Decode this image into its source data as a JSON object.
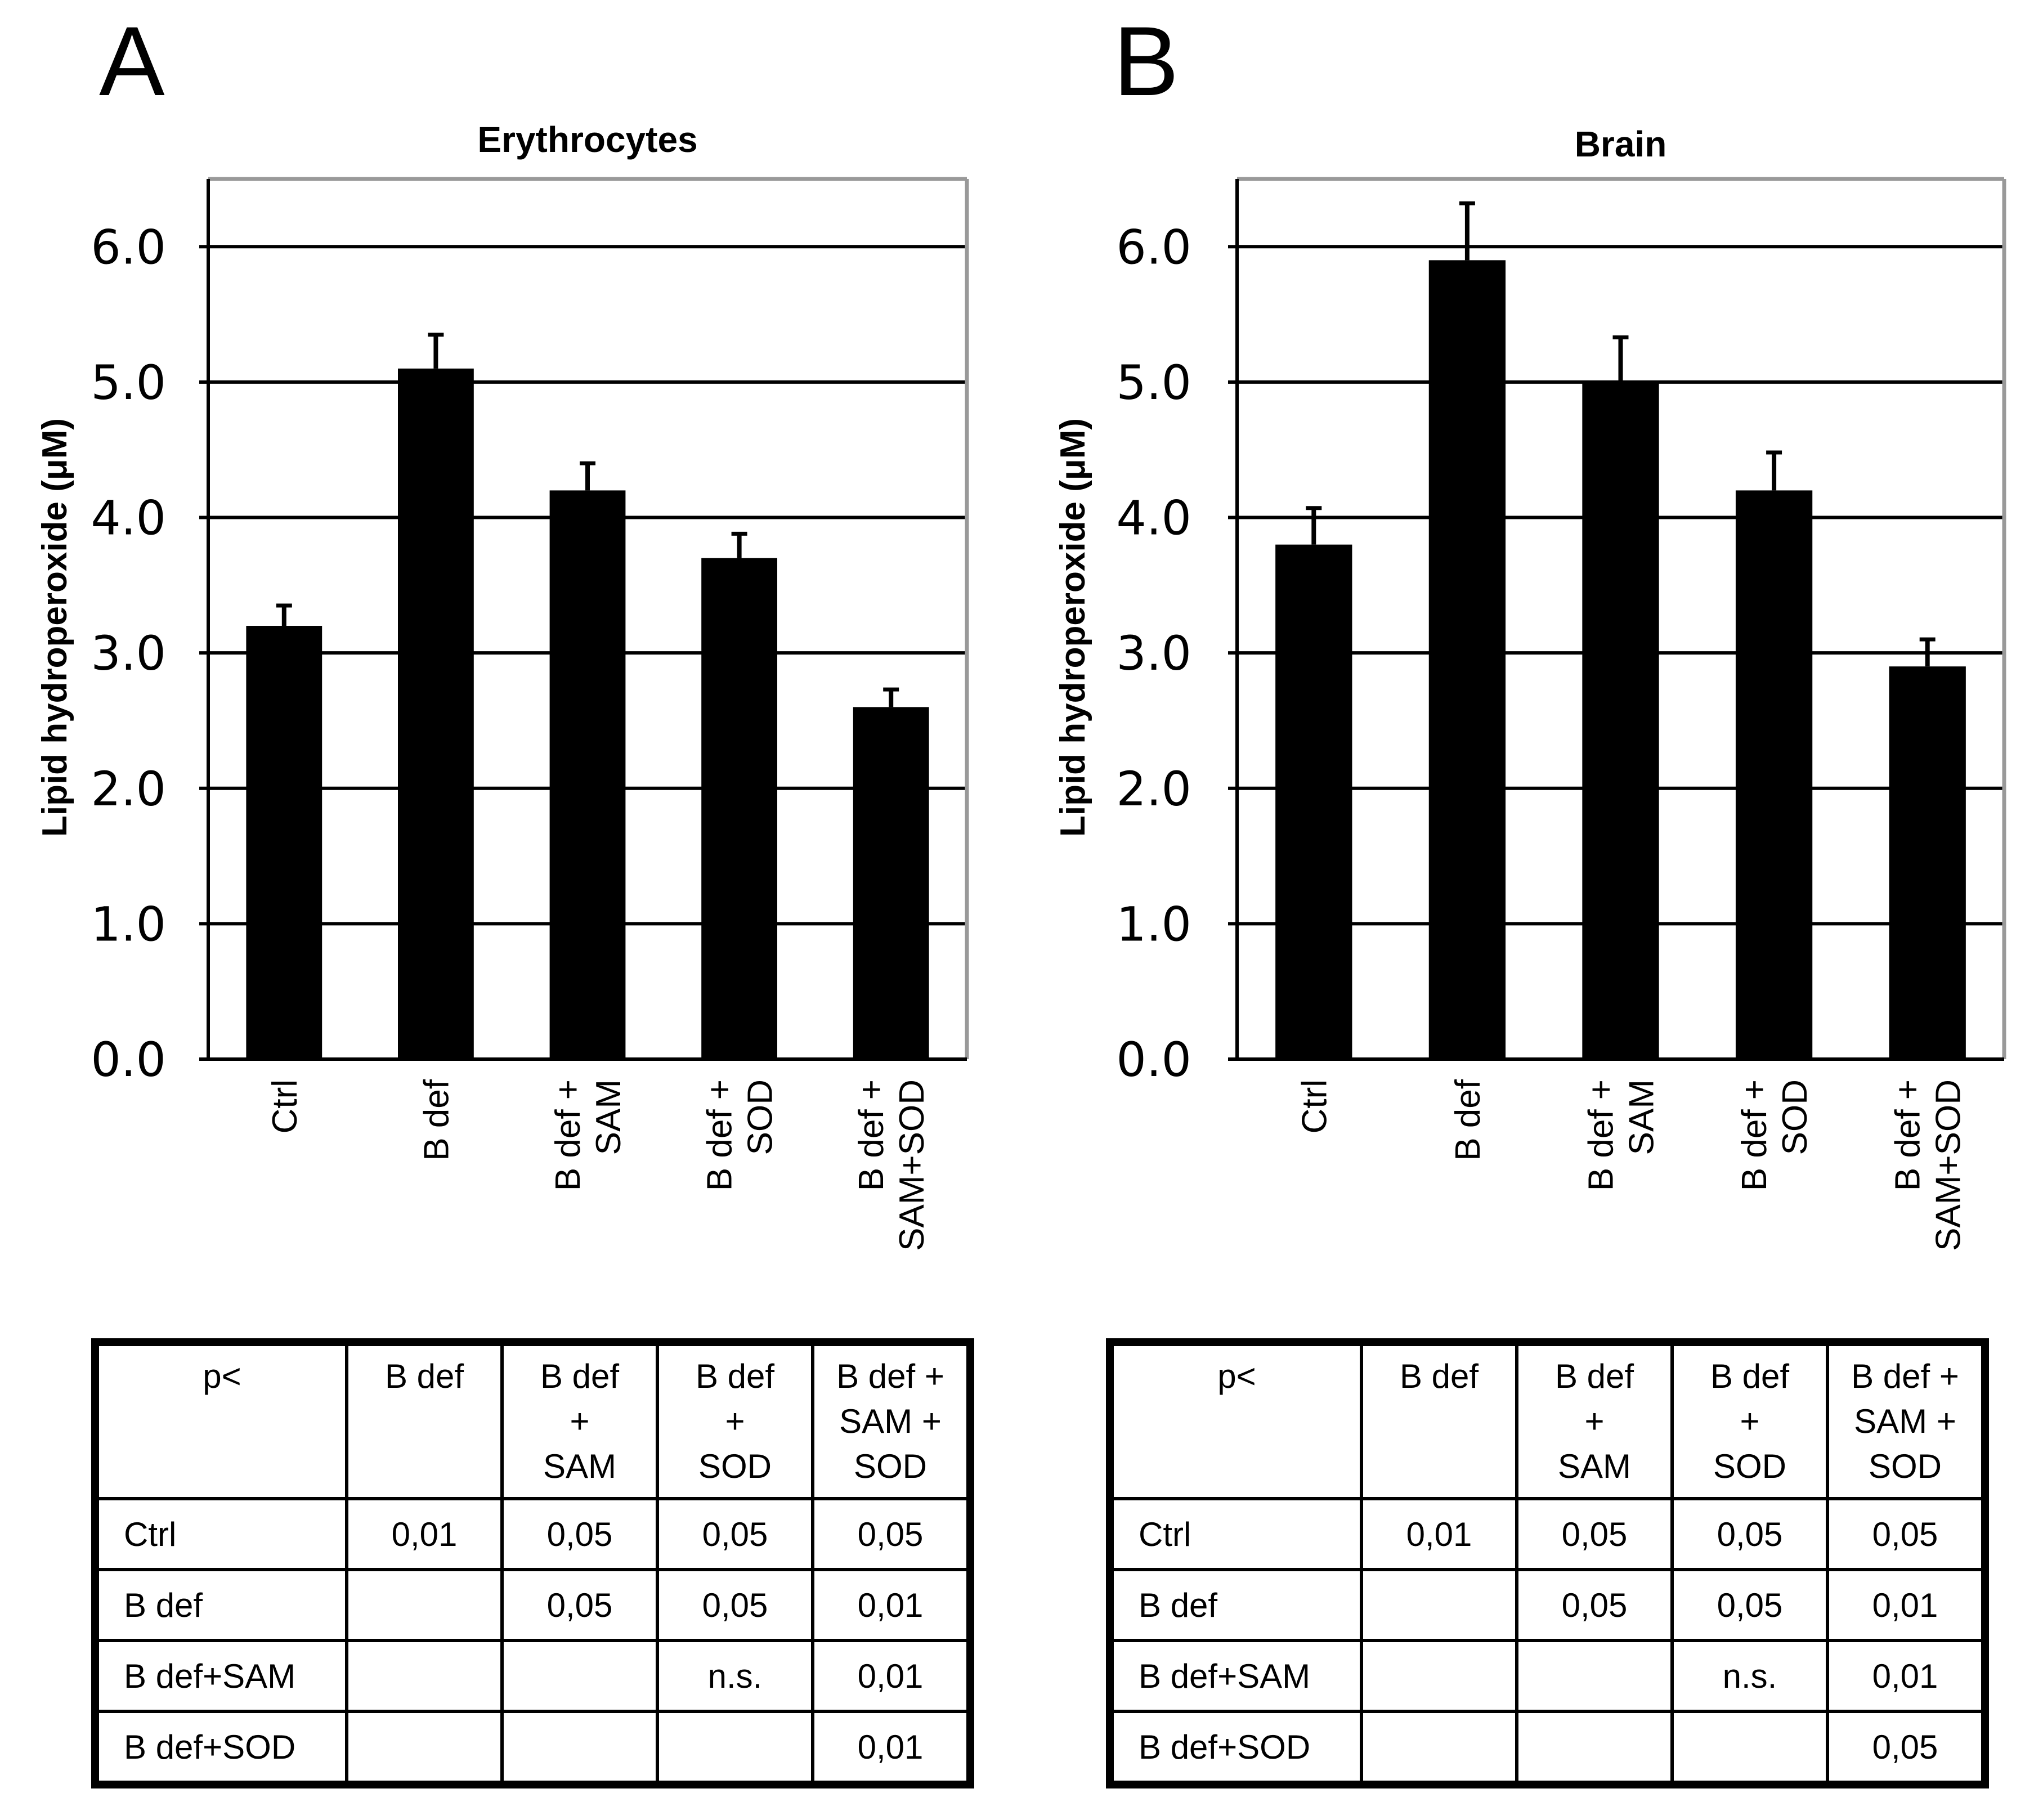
{
  "panels": [
    {
      "letter": "A",
      "chart_data": {
        "type": "bar",
        "title": "Erythrocytes",
        "xlabel": "",
        "ylabel": "Lipid hydroperoxide (μM)",
        "ylim": [
          0,
          6.5
        ],
        "yticks": [
          "0.0",
          "1.0",
          "2.0",
          "3.0",
          "4.0",
          "5.0",
          "6.0"
        ],
        "grid": true,
        "categories": [
          [
            "Ctrl"
          ],
          [
            "B def"
          ],
          [
            "B def +",
            "SAM"
          ],
          [
            "B def +",
            "SOD"
          ],
          [
            "B def +",
            "SAM+SOD"
          ]
        ],
        "values": [
          3.2,
          5.1,
          4.2,
          3.7,
          2.6
        ],
        "errors": [
          0.15,
          0.25,
          0.2,
          0.18,
          0.13
        ],
        "bar_color": "#000000",
        "frame_color": "#999999"
      },
      "table": {
        "corner": "p<",
        "columns": [
          [
            "B def"
          ],
          [
            "B def",
            "+",
            "SAM"
          ],
          [
            "B def",
            "+",
            "SOD"
          ],
          [
            "B def +",
            "SAM +",
            "SOD"
          ]
        ],
        "rows": [
          {
            "label": "Ctrl",
            "cells": [
              "0,01",
              "0,05",
              "0,05",
              "0,05"
            ]
          },
          {
            "label": "B def",
            "cells": [
              "",
              "0,05",
              "0,05",
              "0,01"
            ]
          },
          {
            "label": "B def+SAM",
            "cells": [
              "",
              "",
              "n.s.",
              "0,01"
            ]
          },
          {
            "label": "B def+SOD",
            "cells": [
              "",
              "",
              "",
              "0,01"
            ]
          }
        ]
      }
    },
    {
      "letter": "B",
      "chart_data": {
        "type": "bar",
        "title": "Brain",
        "xlabel": "",
        "ylabel": "Lipid hydroperoxide (μM)",
        "ylim": [
          0,
          6.5
        ],
        "yticks": [
          "0.0",
          "1.0",
          "2.0",
          "3.0",
          "4.0",
          "5.0",
          "6.0"
        ],
        "grid": true,
        "categories": [
          [
            "Ctrl"
          ],
          [
            "B def"
          ],
          [
            "B def +",
            "SAM"
          ],
          [
            "B def +",
            "SOD"
          ],
          [
            "B def +",
            "SAM+SOD"
          ]
        ],
        "values": [
          3.8,
          5.9,
          5.0,
          4.2,
          2.9
        ],
        "errors": [
          0.27,
          0.42,
          0.33,
          0.28,
          0.2
        ],
        "bar_color": "#000000",
        "frame_color": "#999999"
      },
      "table": {
        "corner": "p<",
        "columns": [
          [
            "B def"
          ],
          [
            "B def",
            "+",
            "SAM"
          ],
          [
            "B def",
            "+",
            "SOD"
          ],
          [
            "B def +",
            "SAM +",
            "SOD"
          ]
        ],
        "rows": [
          {
            "label": "Ctrl",
            "cells": [
              "0,01",
              "0,05",
              "0,05",
              "0,05"
            ]
          },
          {
            "label": "B def",
            "cells": [
              "",
              "0,05",
              "0,05",
              "0,01"
            ]
          },
          {
            "label": "B def+SAM",
            "cells": [
              "",
              "",
              "n.s.",
              "0,01"
            ]
          },
          {
            "label": "B def+SOD",
            "cells": [
              "",
              "",
              "",
              "0,05"
            ]
          }
        ]
      }
    }
  ]
}
